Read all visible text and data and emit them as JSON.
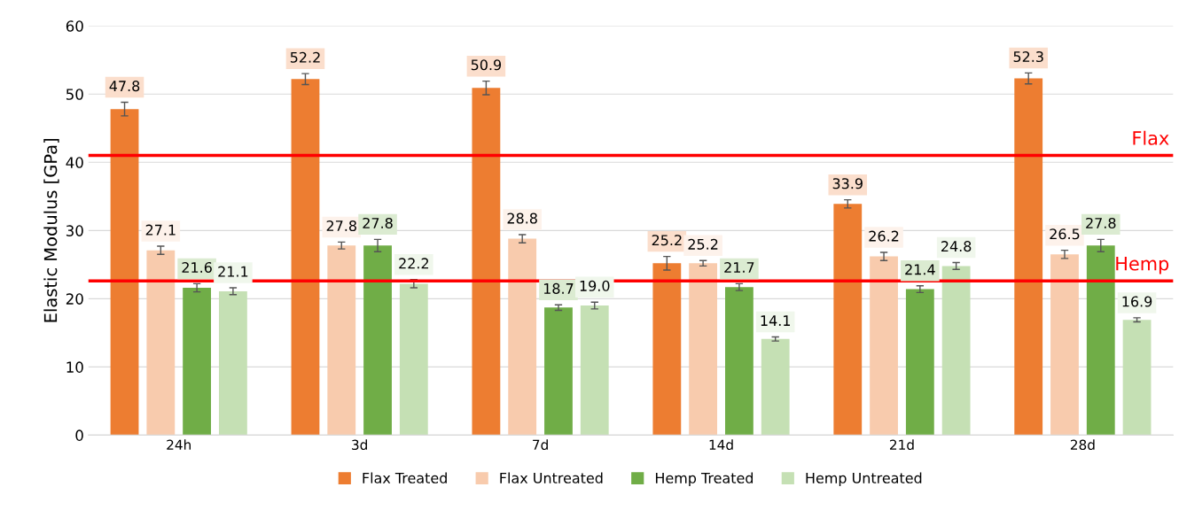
{
  "chart_data": {
    "type": "bar",
    "ylabel": "Elastic Modulus [GPa]",
    "categories": [
      "24h",
      "3d",
      "7d",
      "14d",
      "21d",
      "28d"
    ],
    "series": [
      {
        "name": "Flax Treated",
        "color": "#ed7d31",
        "values": [
          47.8,
          52.2,
          50.9,
          25.2,
          33.9,
          52.3
        ],
        "errors": [
          1.0,
          0.8,
          1.0,
          1.0,
          0.6,
          0.8
        ],
        "value_labels": [
          "47.8",
          "52.2",
          "50.9",
          "25.2",
          "33.9",
          "52.3"
        ]
      },
      {
        "name": "Flax Untreated",
        "color": "#f8cbad",
        "values": [
          27.1,
          27.8,
          28.8,
          25.2,
          26.2,
          26.5
        ],
        "errors": [
          0.6,
          0.5,
          0.6,
          0.4,
          0.6,
          0.6
        ],
        "value_labels": [
          "27.1",
          "27.8",
          "28.8",
          "25.2",
          "26.2",
          "26.5"
        ]
      },
      {
        "name": "Hemp Treated",
        "color": "#70ad47",
        "values": [
          21.6,
          27.8,
          18.7,
          21.7,
          21.4,
          27.8
        ],
        "errors": [
          0.6,
          0.9,
          0.4,
          0.5,
          0.5,
          0.9
        ],
        "value_labels": [
          "21.6",
          "27.8",
          "18.7",
          "21.7",
          "21.4",
          "27.8"
        ]
      },
      {
        "name": "Hemp Untreated",
        "color": "#c5e0b4",
        "values": [
          21.1,
          22.2,
          19.0,
          14.1,
          24.8,
          16.9
        ],
        "errors": [
          0.5,
          0.6,
          0.5,
          0.3,
          0.5,
          0.3
        ],
        "value_labels": [
          "21.1",
          "22.2",
          "19.0",
          "14.1",
          "24.8",
          "16.9"
        ]
      }
    ],
    "ylim": [
      0,
      60
    ],
    "yticks": [
      0,
      10,
      20,
      30,
      40,
      50,
      60
    ],
    "ref_lines": [
      {
        "axis": "y",
        "value": 41,
        "label": "Flax",
        "color": "#ff0000"
      },
      {
        "axis": "y",
        "value": 22.6,
        "label": "Hemp",
        "color": "#ff0000"
      }
    ],
    "grid": "y",
    "legend": "bottom"
  }
}
